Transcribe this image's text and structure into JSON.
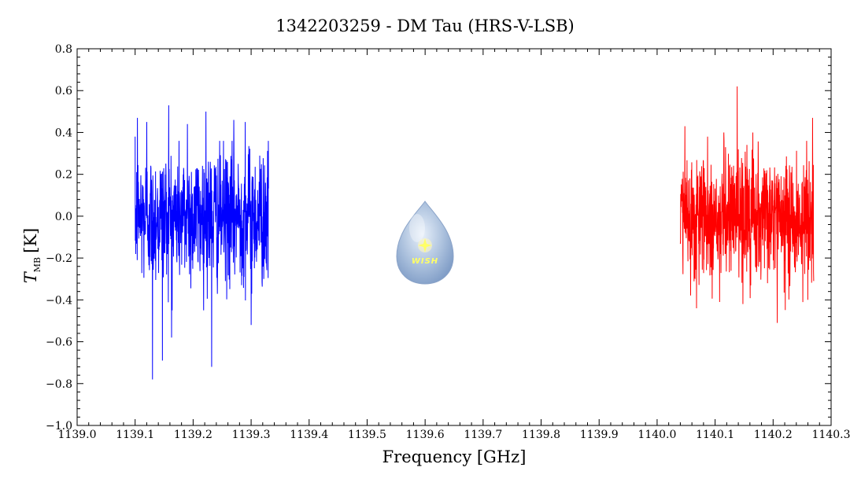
{
  "chart_data": {
    "type": "line",
    "title": "1342203259 - DM Tau (HRS-V-LSB)",
    "xlabel": "Frequency [GHz]",
    "ylabel_main": "T",
    "ylabel_sub": "MB",
    "ylabel_unit": "[K]",
    "xlim": [
      1139.0,
      1140.3
    ],
    "ylim": [
      -1.0,
      0.8
    ],
    "x_ticks": [
      "1139.0",
      "1139.1",
      "1139.2",
      "1139.3",
      "1139.4",
      "1139.5",
      "1139.6",
      "1139.7",
      "1139.8",
      "1139.9",
      "1140.0",
      "1140.1",
      "1140.2",
      "1140.3"
    ],
    "y_ticks": [
      "−1.0",
      "−0.8",
      "−0.6",
      "−0.4",
      "−0.2",
      "0.0",
      "0.2",
      "0.4",
      "0.6",
      "0.8"
    ],
    "grid": false,
    "logo_text": "WISH",
    "series": [
      {
        "color": "#0000ff",
        "x_range": [
          1139.1,
          1139.33
        ],
        "n_points": 700,
        "noise_rms": 0.2,
        "peaks": [
          {
            "x": 1139.1,
            "y": 0.38
          },
          {
            "x": 1139.104,
            "y": 0.47
          },
          {
            "x": 1139.12,
            "y": 0.45
          },
          {
            "x": 1139.158,
            "y": 0.53
          },
          {
            "x": 1139.19,
            "y": 0.44
          },
          {
            "x": 1139.222,
            "y": 0.5
          },
          {
            "x": 1139.27,
            "y": 0.46
          },
          {
            "x": 1139.29,
            "y": 0.45
          },
          {
            "x": 1139.13,
            "y": -0.78
          },
          {
            "x": 1139.147,
            "y": -0.69
          },
          {
            "x": 1139.163,
            "y": -0.58
          },
          {
            "x": 1139.232,
            "y": -0.72
          },
          {
            "x": 1139.3,
            "y": -0.52
          }
        ]
      },
      {
        "color": "#ff0000",
        "x_range": [
          1140.04,
          1140.27
        ],
        "n_points": 700,
        "noise_rms": 0.18,
        "peaks": [
          {
            "x": 1140.048,
            "y": 0.43
          },
          {
            "x": 1140.087,
            "y": 0.38
          },
          {
            "x": 1140.115,
            "y": 0.4
          },
          {
            "x": 1140.138,
            "y": 0.62
          },
          {
            "x": 1140.165,
            "y": 0.4
          },
          {
            "x": 1140.268,
            "y": 0.47
          },
          {
            "x": 1140.068,
            "y": -0.44
          },
          {
            "x": 1140.148,
            "y": -0.42
          },
          {
            "x": 1140.207,
            "y": -0.51
          },
          {
            "x": 1140.27,
            "y": -0.31
          }
        ]
      }
    ]
  }
}
